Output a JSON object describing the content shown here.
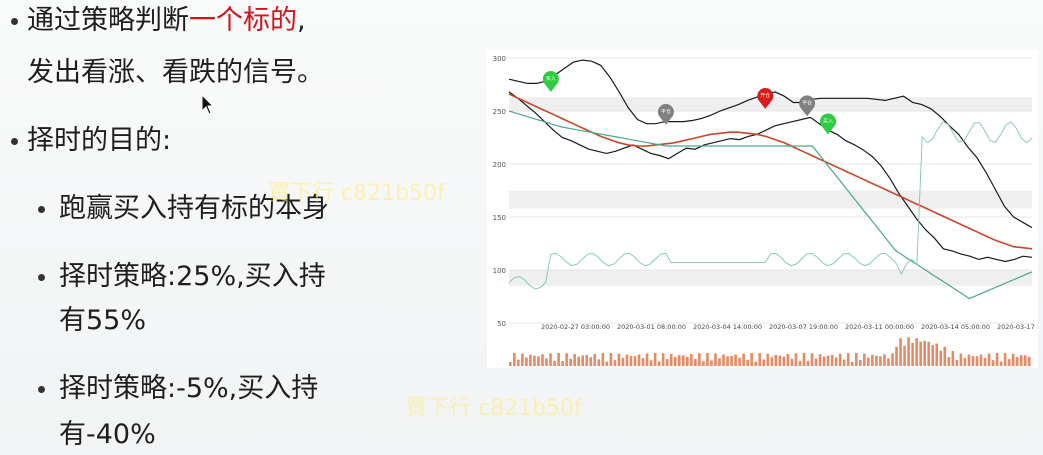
{
  "slide": {
    "point1_line1_prefix": "通过策略判断",
    "point1_line1_highlight": "一个标的",
    "point1_line1_suffix": ",",
    "point1_line2": "发出看涨、看跌的信号。",
    "point2": "择时的目的:",
    "sub1": "跑赢买入持有标的本身",
    "sub2_line1": "择时策略:25%,买入持",
    "sub2_line2": "有55%",
    "sub3_line1": "择时策略:-5%,买入持",
    "sub3_line2": "有-40%"
  },
  "watermark": "賈下行 c821b50f",
  "colors": {
    "highlight": "#d2141b",
    "price": "#1a1a1a",
    "ma": "#c8462a",
    "band_lower": "#4aa88a",
    "volume": "#e58a64",
    "buy_marker": "#2ecc40",
    "sell_marker": "#d81b1b",
    "flat_marker": "#808080"
  },
  "chart_data": {
    "type": "line",
    "y_ticks": [
      "300",
      "250",
      "200",
      "150",
      "100",
      "50"
    ],
    "ylim": [
      50,
      300
    ],
    "x_ticks": [
      "2020-02-27 03:00:00",
      "2020-03-01 08:00:00",
      "2020-03-04 14:00:00",
      "2020-03-07 19:00:00",
      "2020-03-11 00:00:00",
      "2020-03-14 05:00:00",
      "2020-03-17 1"
    ],
    "markers": [
      {
        "label": "买入",
        "kind": "buy",
        "x_index": 0.08,
        "y": 268
      },
      {
        "label": "平仓",
        "kind": "flat",
        "x_index": 0.3,
        "y": 237
      },
      {
        "label": "开仓",
        "kind": "sell",
        "x_index": 0.49,
        "y": 252
      },
      {
        "label": "平仓",
        "kind": "flat",
        "x_index": 0.57,
        "y": 245
      },
      {
        "label": "买入",
        "kind": "buy",
        "x_index": 0.61,
        "y": 228
      }
    ],
    "series": [
      {
        "role": "price",
        "values": [
          268,
          262,
          255,
          248,
          240,
          232,
          225,
          222,
          218,
          214,
          212,
          210,
          212,
          215,
          218,
          214,
          210,
          208,
          205,
          210,
          215,
          214,
          218,
          220,
          222,
          224,
          223,
          226,
          228,
          232,
          236,
          238,
          240,
          242,
          244,
          238,
          232,
          228,
          222,
          218,
          213,
          207,
          198,
          186,
          172,
          160,
          148,
          138,
          130,
          120,
          118,
          115,
          113,
          110,
          112,
          110,
          108,
          110,
          113,
          112
        ]
      },
      {
        "role": "upper_band",
        "values": [
          280,
          278,
          276,
          276,
          278,
          284,
          290,
          296,
          298,
          297,
          293,
          282,
          268,
          253,
          242,
          238,
          238,
          240,
          240,
          240,
          241,
          243,
          246,
          250,
          253,
          256,
          260,
          263,
          266,
          268,
          264,
          258,
          258,
          261,
          262,
          262,
          262,
          262,
          262,
          262,
          261,
          260,
          262,
          264,
          258,
          256,
          252,
          245,
          236,
          228,
          216,
          206,
          192,
          176,
          160,
          150,
          145,
          140
        ]
      },
      {
        "role": "moving_average",
        "values": [
          266,
          262,
          258,
          254,
          250,
          246,
          242,
          238,
          234,
          230,
          226,
          223,
          220,
          218,
          217,
          217,
          218,
          219,
          220,
          222,
          224,
          226,
          228,
          229,
          230,
          230,
          229,
          228,
          226,
          223,
          220,
          216,
          212,
          208,
          204,
          200,
          196,
          192,
          188,
          184,
          180,
          176,
          172,
          168,
          164,
          160,
          156,
          152,
          148,
          144,
          140,
          136,
          132,
          128,
          125,
          122,
          121,
          120
        ]
      }
    ]
  }
}
